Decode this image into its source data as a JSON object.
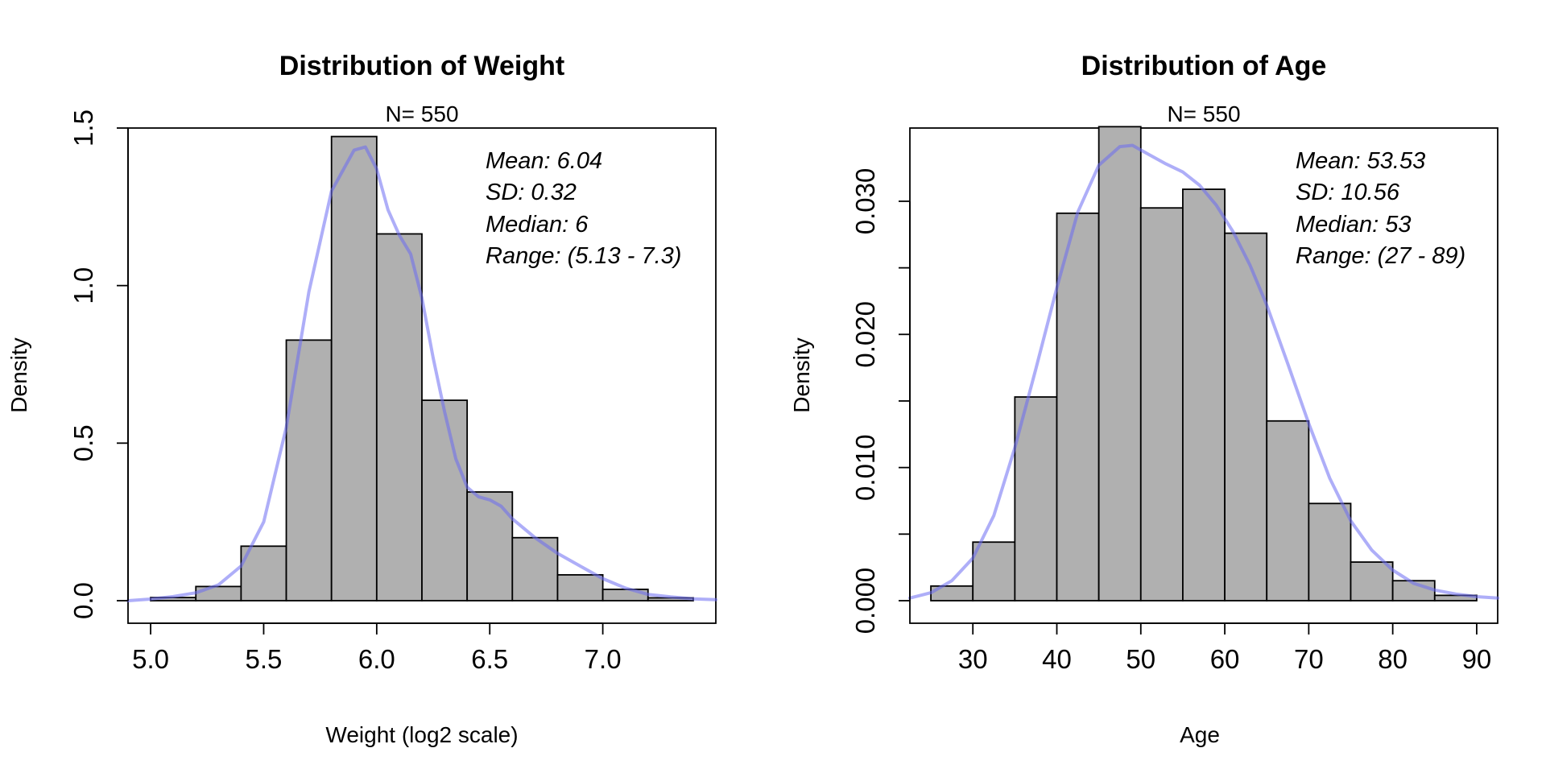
{
  "colors": {
    "bar_fill": "#b0b0b0",
    "bar_stroke": "#000000",
    "density_line": "#6b6bf2",
    "density_opacity": 0.55
  },
  "chart_data": [
    {
      "type": "bar",
      "title": "Distribution of Weight",
      "subtitle": "N= 550",
      "xlabel": "Weight (log2 scale)",
      "ylabel": "Density",
      "xlim": [
        4.9,
        7.5
      ],
      "ylim": [
        0,
        1.5
      ],
      "xticks": [
        5.0,
        5.5,
        6.0,
        6.5,
        7.0
      ],
      "xtick_labels": [
        "5.0",
        "5.5",
        "6.0",
        "6.5",
        "7.0"
      ],
      "yticks": [
        0,
        0.5,
        1.0,
        1.5
      ],
      "ytick_labels": [
        "0.0",
        "0.5",
        "1.0",
        "1.5"
      ],
      "grid": false,
      "bins": [
        {
          "x0": 5.0,
          "x1": 5.2,
          "density": 0.01
        },
        {
          "x0": 5.2,
          "x1": 5.4,
          "density": 0.045
        },
        {
          "x0": 5.4,
          "x1": 5.6,
          "density": 0.173
        },
        {
          "x0": 5.6,
          "x1": 5.8,
          "density": 0.827
        },
        {
          "x0": 5.8,
          "x1": 6.0,
          "density": 1.473
        },
        {
          "x0": 6.0,
          "x1": 6.2,
          "density": 1.164
        },
        {
          "x0": 6.2,
          "x1": 6.4,
          "density": 0.636
        },
        {
          "x0": 6.4,
          "x1": 6.6,
          "density": 0.345
        },
        {
          "x0": 6.6,
          "x1": 6.8,
          "density": 0.2
        },
        {
          "x0": 6.8,
          "x1": 7.0,
          "density": 0.082
        },
        {
          "x0": 7.0,
          "x1": 7.2,
          "density": 0.036
        },
        {
          "x0": 7.2,
          "x1": 7.4,
          "density": 0.009
        }
      ],
      "density_curve": {
        "x": [
          4.9,
          5.0,
          5.1,
          5.2,
          5.3,
          5.4,
          5.5,
          5.6,
          5.7,
          5.8,
          5.9,
          5.95,
          6.0,
          6.05,
          6.1,
          6.15,
          6.2,
          6.25,
          6.3,
          6.35,
          6.4,
          6.45,
          6.5,
          6.55,
          6.6,
          6.7,
          6.8,
          6.9,
          7.0,
          7.1,
          7.2,
          7.3,
          7.4,
          7.5
        ],
        "y": [
          0.0,
          0.005,
          0.013,
          0.025,
          0.05,
          0.11,
          0.25,
          0.55,
          0.98,
          1.3,
          1.43,
          1.44,
          1.37,
          1.24,
          1.16,
          1.1,
          0.96,
          0.77,
          0.6,
          0.45,
          0.36,
          0.33,
          0.32,
          0.3,
          0.26,
          0.2,
          0.15,
          0.11,
          0.07,
          0.04,
          0.02,
          0.012,
          0.006,
          0.003
        ]
      },
      "stats": [
        "Mean: 6.04",
        "SD: 0.32",
        "Median: 6",
        "Range: (5.13 - 7.3)"
      ]
    },
    {
      "type": "bar",
      "title": "Distribution of Age",
      "subtitle": "N= 550",
      "xlabel": "Age",
      "ylabel": "Density",
      "xlim": [
        22.5,
        92.5
      ],
      "ylim": [
        0,
        0.0355
      ],
      "xticks": [
        30,
        40,
        50,
        60,
        70,
        80,
        90
      ],
      "xtick_labels": [
        "30",
        "40",
        "50",
        "60",
        "70",
        "80",
        "90"
      ],
      "yticks": [
        0,
        0.005,
        0.01,
        0.015,
        0.02,
        0.025,
        0.03
      ],
      "ytick_labels": [
        "0.000",
        "",
        "0.010",
        "",
        "0.020",
        "",
        "0.030"
      ],
      "grid": false,
      "bins": [
        {
          "x0": 25,
          "x1": 30,
          "density": 0.0011
        },
        {
          "x0": 30,
          "x1": 35,
          "density": 0.0044
        },
        {
          "x0": 35,
          "x1": 40,
          "density": 0.0153
        },
        {
          "x0": 40,
          "x1": 45,
          "density": 0.0291
        },
        {
          "x0": 45,
          "x1": 50,
          "density": 0.0356
        },
        {
          "x0": 50,
          "x1": 55,
          "density": 0.0295
        },
        {
          "x0": 55,
          "x1": 60,
          "density": 0.0309
        },
        {
          "x0": 60,
          "x1": 65,
          "density": 0.0276
        },
        {
          "x0": 65,
          "x1": 70,
          "density": 0.0135
        },
        {
          "x0": 70,
          "x1": 75,
          "density": 0.0073
        },
        {
          "x0": 75,
          "x1": 80,
          "density": 0.0029
        },
        {
          "x0": 80,
          "x1": 85,
          "density": 0.0015
        },
        {
          "x0": 85,
          "x1": 90,
          "density": 0.0004
        }
      ],
      "density_curve": {
        "x": [
          22.5,
          25,
          27.5,
          30,
          32.5,
          35,
          37.5,
          40,
          42.5,
          45,
          47.5,
          49,
          51,
          53,
          55,
          57,
          59,
          61,
          63,
          65,
          67.5,
          70,
          72.5,
          75,
          77.5,
          80,
          82.5,
          85,
          87.5,
          90,
          92.5
        ],
        "y": [
          0.0002,
          0.0006,
          0.0015,
          0.0032,
          0.0064,
          0.0115,
          0.0174,
          0.0235,
          0.0292,
          0.0327,
          0.0341,
          0.0342,
          0.0335,
          0.0328,
          0.0322,
          0.0312,
          0.0297,
          0.0277,
          0.0252,
          0.0222,
          0.0178,
          0.0133,
          0.0092,
          0.006,
          0.0038,
          0.0023,
          0.0013,
          0.0008,
          0.0005,
          0.0003,
          0.0002
        ]
      },
      "stats": [
        "Mean: 53.53",
        "SD: 10.56",
        "Median: 53",
        "Range: (27 - 89)"
      ]
    }
  ]
}
